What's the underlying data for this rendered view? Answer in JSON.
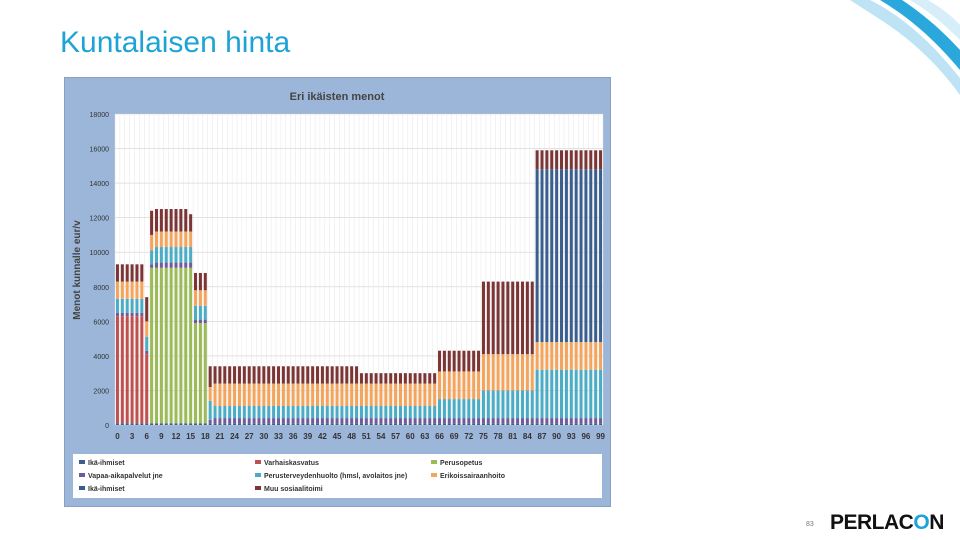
{
  "slide": {
    "title": "Kuntalaisen hinta",
    "page_number": "83",
    "logo_text_main": "PERLAC",
    "logo_text_accent": "O",
    "logo_text_end": "N"
  },
  "colors": {
    "accent": "#1ea3d6",
    "chart_background": "#9bb6d8",
    "plot_background": "#ffffff"
  },
  "chart_data": {
    "type": "bar",
    "stacked": true,
    "title": "Eri ikäisten menot",
    "ylabel": "Menot kunnalle eur/v",
    "xlabel": "",
    "ylim": [
      0,
      18000
    ],
    "yticks": [
      0,
      2000,
      4000,
      6000,
      8000,
      10000,
      12000,
      14000,
      16000,
      18000
    ],
    "xlim": [
      0,
      100
    ],
    "xticks": [
      0,
      3,
      6,
      9,
      12,
      15,
      18,
      21,
      24,
      27,
      30,
      33,
      36,
      39,
      42,
      45,
      48,
      51,
      54,
      57,
      60,
      63,
      66,
      69,
      72,
      75,
      78,
      81,
      84,
      87,
      90,
      93,
      96,
      99
    ],
    "grid": true,
    "legend_position": "bottom",
    "series": [
      {
        "name": "Ikä-ihmiset",
        "color": "#3a5f8f"
      },
      {
        "name": "Varhaiskasvatus",
        "color": "#c0504d"
      },
      {
        "name": "Perusopetus",
        "color": "#9bbb59"
      },
      {
        "name": "Vapaa-aikapalvelut jne",
        "color": "#6f5a9c"
      },
      {
        "name": "Perusterveydenhuolto (hmsl, avolaitos jne)",
        "color": "#4bacc6"
      },
      {
        "name": "Erikoissairaanhoito",
        "color": "#f4a45b"
      },
      {
        "name": "Ikä-ihmiset",
        "color": "#3a5f8f"
      },
      {
        "name": "Muu sosiaalitoimi",
        "color": "#7b3535"
      }
    ],
    "segments": [
      {
        "from": 0,
        "to": 5,
        "values": [
          100,
          6200,
          0,
          200,
          800,
          1000,
          0,
          1000
        ]
      },
      {
        "from": 6,
        "to": 6,
        "values": [
          100,
          4000,
          0,
          200,
          800,
          900,
          0,
          1400
        ]
      },
      {
        "from": 7,
        "to": 7,
        "values": [
          100,
          0,
          9000,
          200,
          800,
          900,
          0,
          1400
        ]
      },
      {
        "from": 8,
        "to": 14,
        "values": [
          100,
          0,
          9000,
          300,
          900,
          900,
          0,
          1300
        ]
      },
      {
        "from": 15,
        "to": 15,
        "values": [
          100,
          0,
          9000,
          300,
          900,
          900,
          0,
          1000
        ]
      },
      {
        "from": 16,
        "to": 18,
        "values": [
          100,
          0,
          5800,
          200,
          800,
          900,
          0,
          1000
        ]
      },
      {
        "from": 19,
        "to": 19,
        "values": [
          100,
          0,
          0,
          200,
          1100,
          800,
          0,
          1200
        ]
      },
      {
        "from": 20,
        "to": 49,
        "values": [
          100,
          0,
          0,
          300,
          700,
          1300,
          0,
          1000
        ]
      },
      {
        "from": 50,
        "to": 65,
        "values": [
          100,
          0,
          0,
          300,
          700,
          1300,
          0,
          600
        ]
      },
      {
        "from": 66,
        "to": 74,
        "values": [
          100,
          0,
          0,
          300,
          1100,
          1600,
          0,
          1200
        ]
      },
      {
        "from": 75,
        "to": 85,
        "values": [
          100,
          0,
          0,
          300,
          1600,
          2100,
          0,
          4200
        ]
      },
      {
        "from": 86,
        "to": 99,
        "values": [
          100,
          0,
          0,
          300,
          2800,
          1600,
          10000,
          1100
        ]
      }
    ]
  }
}
